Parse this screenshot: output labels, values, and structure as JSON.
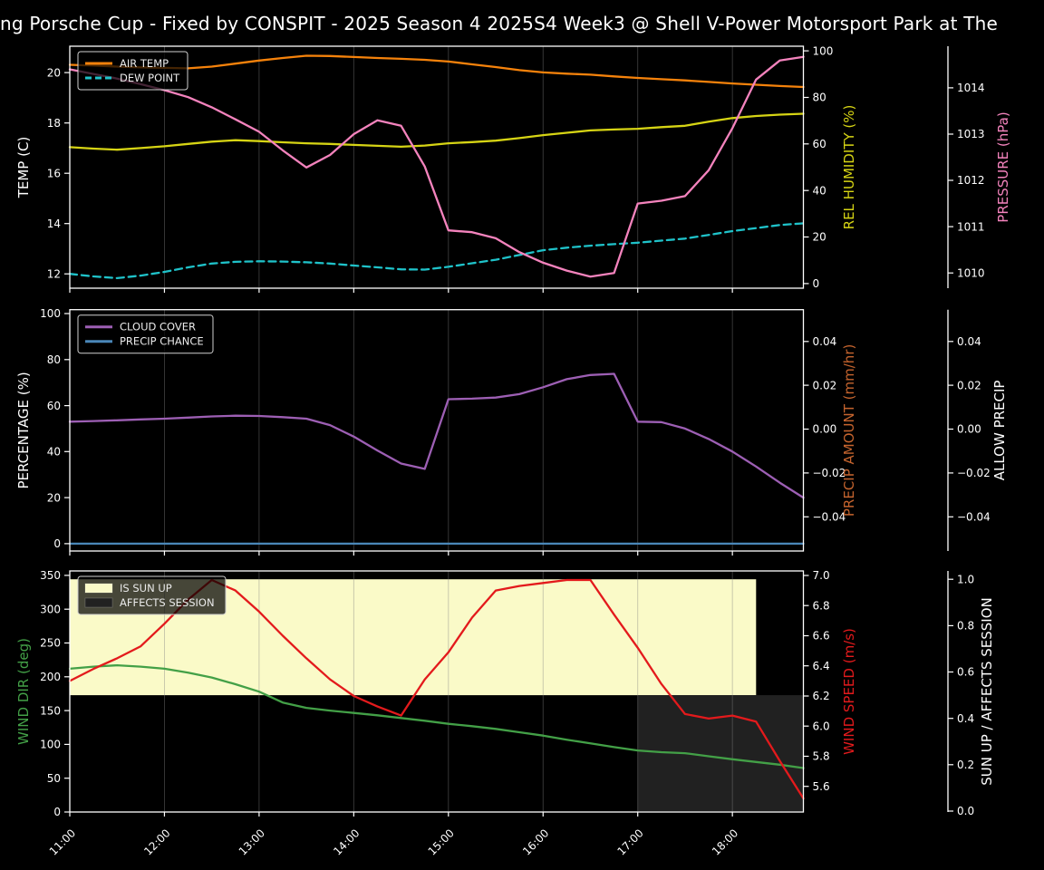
{
  "title": "ng Porsche Cup - Fixed by CONSPIT - 2025 Season 4 2025S4 Week3 @ Shell V-Power Motorsport Park at The",
  "chart_data": {
    "type": "line",
    "x_unit": "time of day",
    "x_range": [
      11.0,
      18.75
    ],
    "x_step_hours": 0.25,
    "times": [
      "11:00",
      "11:15",
      "11:30",
      "11:45",
      "12:00",
      "12:15",
      "12:30",
      "12:45",
      "13:00",
      "13:15",
      "13:30",
      "13:45",
      "14:00",
      "14:15",
      "14:30",
      "14:45",
      "15:00",
      "15:15",
      "15:30",
      "15:45",
      "16:00",
      "16:15",
      "16:30",
      "16:45",
      "17:00",
      "17:15",
      "17:30",
      "17:45",
      "18:00",
      "18:15",
      "18:30",
      "18:45"
    ],
    "x_ticks": [
      {
        "t": 11,
        "label": "11:00"
      },
      {
        "t": 12,
        "label": "12:00"
      },
      {
        "t": 13,
        "label": "13:00"
      },
      {
        "t": 14,
        "label": "14:00"
      },
      {
        "t": 15,
        "label": "15:00"
      },
      {
        "t": 16,
        "label": "16:00"
      },
      {
        "t": 17,
        "label": "17:00"
      },
      {
        "t": 18,
        "label": "18:00"
      }
    ],
    "grid": "vertical-hour-lines",
    "panels": [
      {
        "name": "temperature",
        "legend_position": "upper-left",
        "legend": [
          {
            "label": "AIR TEMP",
            "type": "line",
            "color": "#f5820b"
          },
          {
            "label": "DEW POINT",
            "type": "dash",
            "color": "#1fc2c9"
          }
        ],
        "axes": [
          {
            "key": "temp",
            "side": "left",
            "label": "TEMP (C)",
            "label_color": "#ffffff",
            "range": [
              21.05,
              11.43
            ],
            "ticks": [
              20,
              18,
              16,
              14,
              12
            ],
            "tick_labels": [
              "20",
              "18",
              "16",
              "14",
              "12"
            ]
          },
          {
            "key": "hum",
            "side": "right",
            "label": "REL HUMIDITY (%)",
            "label_color": "#d6d414",
            "range": [
              102,
              -2
            ],
            "ticks": [
              100,
              80,
              60,
              40,
              20,
              0
            ],
            "tick_labels": [
              "100",
              "80",
              "60",
              "40",
              "20",
              "0"
            ]
          },
          {
            "key": "pres",
            "side": "right2",
            "label": "PRESSURE (hPa)",
            "label_color": "#f483bd",
            "range": [
              1014.9,
              1009.67
            ],
            "ticks": [
              1014,
              1013,
              1012,
              1011,
              1010
            ],
            "tick_labels": [
              "1014",
              "1013",
              "1012",
              "1011",
              "1010"
            ]
          }
        ],
        "series": [
          {
            "name": "air-temp",
            "label": "AIR TEMP",
            "axis": "temp",
            "color": "#f5820b",
            "dashed": false,
            "values": [
              20.31,
              20.28,
              20.24,
              20.21,
              20.19,
              20.17,
              20.24,
              20.36,
              20.48,
              20.58,
              20.67,
              20.66,
              20.62,
              20.58,
              20.55,
              20.51,
              20.44,
              20.33,
              20.22,
              20.1,
              20.01,
              19.96,
              19.92,
              19.85,
              19.79,
              19.74,
              19.69,
              19.63,
              19.57,
              19.52,
              19.47,
              19.43
            ]
          },
          {
            "name": "dew-point",
            "label": "DEW POINT",
            "axis": "temp",
            "color": "#1fc2c9",
            "dashed": true,
            "values": [
              12.0,
              11.9,
              11.83,
              11.93,
              12.08,
              12.26,
              12.41,
              12.48,
              12.5,
              12.49,
              12.46,
              12.41,
              12.33,
              12.26,
              12.18,
              12.17,
              12.28,
              12.42,
              12.56,
              12.75,
              12.94,
              13.04,
              13.12,
              13.18,
              13.24,
              13.32,
              13.4,
              13.55,
              13.7,
              13.82,
              13.94,
              14.01
            ]
          },
          {
            "name": "rel-humidity",
            "label": "REL HUMIDITY",
            "axis": "hum",
            "color": "#d6d414",
            "dashed": false,
            "values": [
              58.6,
              58.0,
              57.5,
              58.2,
              59.0,
              60.0,
              61.0,
              61.6,
              61.2,
              60.7,
              60.3,
              60.0,
              59.6,
              59.2,
              58.8,
              59.3,
              60.3,
              60.8,
              61.4,
              62.5,
              63.8,
              64.8,
              65.8,
              66.2,
              66.5,
              67.2,
              67.8,
              69.6,
              71.1,
              72.0,
              72.6,
              73.0
            ]
          },
          {
            "name": "pressure",
            "label": "PRESSURE",
            "axis": "pres",
            "color": "#f483bd",
            "dashed": false,
            "values": [
              1014.4,
              1014.3,
              1014.2,
              1014.08,
              1013.95,
              1013.8,
              1013.58,
              1013.32,
              1013.05,
              1012.65,
              1012.28,
              1012.55,
              1013.0,
              1013.3,
              1013.18,
              1012.3,
              1010.92,
              1010.88,
              1010.75,
              1010.45,
              1010.22,
              1010.05,
              1009.92,
              1010.0,
              1011.5,
              1011.56,
              1011.66,
              1012.22,
              1013.13,
              1014.18,
              1014.59,
              1014.67
            ]
          }
        ]
      },
      {
        "name": "precipitation",
        "legend_position": "upper-left",
        "legend": [
          {
            "label": "CLOUD COVER",
            "type": "line",
            "color": "#9d5fb4"
          },
          {
            "label": "PRECIP CHANCE",
            "type": "line",
            "color": "#4a87b9"
          }
        ],
        "axes": [
          {
            "key": "pct",
            "side": "left",
            "label": "PERCENTAGE (%)",
            "label_color": "#ffffff",
            "range": [
              101.7,
              -3.2
            ],
            "ticks": [
              100,
              80,
              60,
              40,
              20,
              0
            ],
            "tick_labels": [
              "100",
              "80",
              "60",
              "40",
              "20",
              "0"
            ]
          },
          {
            "key": "pamt",
            "side": "right",
            "label": "PRECIP AMOUNT (mm/hr)",
            "label_color": "#c5642e",
            "range": [
              0.0545,
              -0.0556
            ],
            "ticks": [
              0.04,
              0.02,
              0.0,
              -0.02,
              -0.04
            ],
            "tick_labels": [
              "0.04",
              "0.02",
              "0.00",
              "−0.02",
              "−0.04"
            ]
          },
          {
            "key": "allow",
            "side": "right2",
            "label": "ALLOW PRECIP",
            "label_color": "#ffffff",
            "range": [
              0.0545,
              -0.0556
            ],
            "ticks": [
              0.04,
              0.02,
              0.0,
              -0.02,
              -0.04
            ],
            "tick_labels": [
              "0.04",
              "0.02",
              "0.00",
              "−0.02",
              "−0.04"
            ]
          }
        ],
        "series": [
          {
            "name": "cloud-cover",
            "label": "CLOUD COVER",
            "axis": "pct",
            "color": "#9d5fb4",
            "dashed": false,
            "values": [
              53.0,
              53.3,
              53.6,
              54.0,
              54.3,
              54.8,
              55.3,
              55.6,
              55.5,
              55.0,
              54.3,
              51.5,
              46.5,
              40.5,
              34.8,
              32.5,
              62.8,
              63.0,
              63.5,
              65.0,
              68.0,
              71.5,
              73.3,
              73.8,
              53.0,
              52.8,
              50.0,
              45.5,
              40.0,
              33.5,
              26.5,
              20.0
            ]
          },
          {
            "name": "precip-chance",
            "label": "PRECIP CHANCE",
            "axis": "pct",
            "color": "#4a87b9",
            "dashed": false,
            "values": [
              0,
              0,
              0,
              0,
              0,
              0,
              0,
              0,
              0,
              0,
              0,
              0,
              0,
              0,
              0,
              0,
              0,
              0,
              0,
              0,
              0,
              0,
              0,
              0,
              0,
              0,
              0,
              0,
              0,
              0,
              0,
              0
            ]
          }
        ]
      },
      {
        "name": "wind-sun",
        "legend_position": "upper-left",
        "legend": [
          {
            "label": "IS SUN UP",
            "type": "patch",
            "color": "#fafac8"
          },
          {
            "label": "AFFECTS SESSION",
            "type": "patch",
            "color": "#212121"
          }
        ],
        "bands": [
          {
            "name": "is-sun-up",
            "label": "IS SUN UP",
            "axis": "sun",
            "color": "#fafac8",
            "x_from": 11.0,
            "x_to": 18.25,
            "y_from": 0.5,
            "y_to": 1.0
          },
          {
            "name": "affects-session",
            "label": "AFFECTS SESSION",
            "axis": "sun",
            "color": "#212121",
            "x_from": 17.0,
            "x_to": 18.75,
            "y_from": 0.0,
            "y_to": 0.5
          }
        ],
        "axes": [
          {
            "key": "wdir",
            "side": "left",
            "label": "WIND DIR (deg)",
            "label_color": "#43a047",
            "range": [
              356.6,
              0
            ],
            "ticks": [
              350,
              300,
              250,
              200,
              150,
              100,
              50,
              0
            ],
            "tick_labels": [
              "350",
              "300",
              "250",
              "200",
              "150",
              "100",
              "50",
              "0"
            ]
          },
          {
            "key": "wspd",
            "side": "right",
            "label": "WIND SPEED (m/s)",
            "label_color": "#e31a1c",
            "range": [
              7.03,
              5.43
            ],
            "ticks": [
              7.0,
              6.8,
              6.6,
              6.4,
              6.2,
              6.0,
              5.8,
              5.6
            ],
            "tick_labels": [
              "7.0",
              "6.8",
              "6.6",
              "6.4",
              "6.2",
              "6.0",
              "5.8",
              "5.6"
            ]
          },
          {
            "key": "sun",
            "side": "right2",
            "label": "SUN UP / AFFECTS SESSION",
            "label_color": "#ffffff",
            "range": [
              1.036,
              -0.004
            ],
            "ticks": [
              1.0,
              0.8,
              0.6,
              0.4,
              0.2,
              0.0
            ],
            "tick_labels": [
              "1.0",
              "0.8",
              "0.6",
              "0.4",
              "0.2",
              "0.0"
            ]
          }
        ],
        "series": [
          {
            "name": "wind-dir",
            "label": "WIND DIR",
            "axis": "wdir",
            "color": "#43a047",
            "dashed": false,
            "values": [
              212,
              215,
              217,
              215,
              212,
              206,
              199,
              189,
              178,
              162,
              154,
              150,
              146.5,
              143,
              139,
              135,
              130.5,
              127,
              123,
              118,
              113,
              107,
              101.5,
              96,
              91,
              88.5,
              87,
              82.5,
              78,
              74,
              70,
              65
            ]
          },
          {
            "name": "wind-speed",
            "label": "WIND SPEED",
            "axis": "wspd",
            "color": "#e31a1c",
            "dashed": false,
            "values": [
              6.3,
              6.38,
              6.45,
              6.53,
              6.68,
              6.84,
              6.97,
              6.9,
              6.76,
              6.6,
              6.45,
              6.31,
              6.2,
              6.13,
              6.07,
              6.31,
              6.49,
              6.72,
              6.9,
              6.93,
              6.95,
              6.97,
              6.97,
              6.74,
              6.52,
              6.28,
              6.08,
              6.05,
              6.07,
              6.03,
              5.77,
              5.52
            ]
          }
        ]
      }
    ],
    "colors": {
      "background": "#000000",
      "foreground": "#ffffff",
      "grid": "#828282",
      "sun_band": "#fafac8",
      "affects_band": "#212121"
    }
  }
}
